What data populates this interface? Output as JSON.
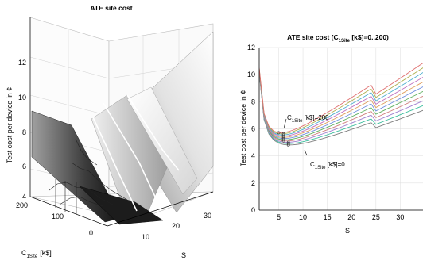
{
  "chart_data": [
    {
      "type": "surface",
      "title": "ATE site cost",
      "zlabel": "Test cost per device in ¢",
      "xlabel_main": "C",
      "xlabel_sub": "1Site",
      "xlabel_unit": "[k$]",
      "ylabel": "S",
      "zticks": [
        "4",
        "6",
        "8",
        "10",
        "12"
      ],
      "c_ticks": [
        "200",
        "100",
        "0"
      ],
      "s_ticks": [
        "10",
        "20",
        "30"
      ],
      "zlim": [
        4,
        13
      ],
      "grid": true
    },
    {
      "type": "line",
      "title_main": "ATE site cost (C",
      "title_sub": "1Site",
      "title_tail": " [k$]=0..200)",
      "xlabel": "S",
      "ylabel": "Test cost per device in ¢",
      "xlim": [
        1,
        35
      ],
      "ylim": [
        0,
        12
      ],
      "xticks": [
        "5",
        "10",
        "15",
        "20",
        "25",
        "30"
      ],
      "yticks": [
        "0",
        "2",
        "4",
        "6",
        "8",
        "10",
        "12"
      ],
      "annotations": [
        {
          "main": "C",
          "sub": "1Site",
          "tail": " [k$]=200"
        },
        {
          "main": "C",
          "sub": "1Site",
          "tail": " [k$]=0"
        }
      ],
      "series_count": 11,
      "c_values": [
        0,
        20,
        40,
        60,
        80,
        100,
        120,
        140,
        160,
        180,
        200
      ],
      "x": [
        1,
        2,
        3,
        4,
        5,
        6,
        7,
        8,
        9,
        10,
        11,
        12,
        13,
        14,
        15,
        16,
        17,
        18,
        19,
        20,
        21,
        22,
        23,
        24,
        25,
        26,
        27,
        28,
        29,
        30,
        31,
        32,
        33,
        34,
        35
      ],
      "colors": [
        "#7f7f7f",
        "#3fbf9f",
        "#9f7fcf",
        "#cf7f7f",
        "#5faf5f",
        "#6f8fdf",
        "#df9f5f",
        "#bf6fbf",
        "#4fafcf",
        "#afaf4f",
        "#df6f6f"
      ],
      "grid": true
    }
  ]
}
